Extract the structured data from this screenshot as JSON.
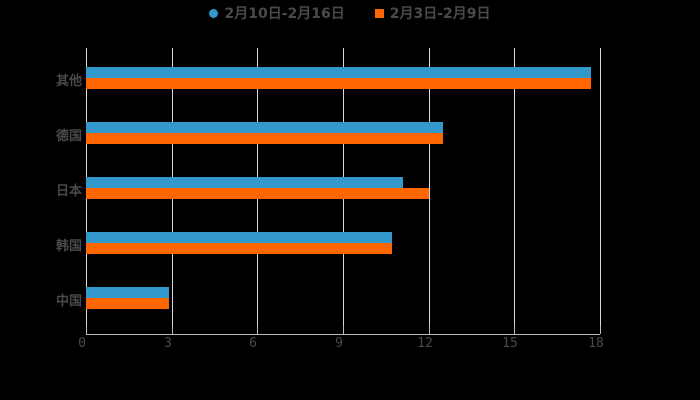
{
  "chart_data": {
    "type": "bar",
    "orientation": "horizontal",
    "title": "",
    "xlabel": "",
    "ylabel": "",
    "categories": [
      "其他",
      "德国",
      "日本",
      "韩国",
      "中国"
    ],
    "series": [
      {
        "name": "2月10日-2月16日",
        "color": "#3399cc",
        "values": [
          17.7,
          12.5,
          11.1,
          10.7,
          2.9
        ]
      },
      {
        "name": "2月3日-2月9日",
        "color": "#ff6600",
        "values": [
          17.7,
          12.5,
          12.0,
          10.7,
          2.9
        ]
      }
    ],
    "xlim": [
      0,
      18
    ],
    "xticks": [
      "0",
      "3",
      "6",
      "9",
      "12",
      "15",
      "18"
    ],
    "grid": true,
    "legend_position": "top"
  },
  "legend": {
    "items": [
      {
        "label": "2月10日-2月16日",
        "color": "#3399cc",
        "shape": "circle"
      },
      {
        "label": "2月3日-2月9日",
        "color": "#ff6600",
        "shape": "square"
      }
    ]
  }
}
